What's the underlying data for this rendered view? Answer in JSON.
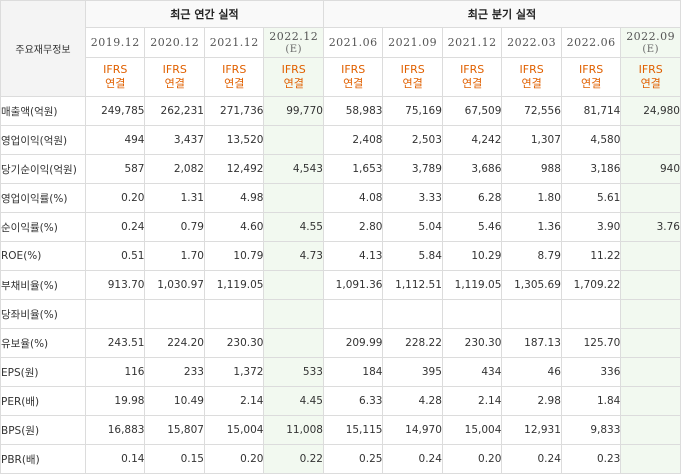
{
  "table": {
    "corner_label": "주요재무정보",
    "group_annual": "최근 연간 실적",
    "group_quarter": "최근 분기 실적",
    "periods": [
      {
        "label": "2019.12",
        "sub": "",
        "est": false
      },
      {
        "label": "2020.12",
        "sub": "",
        "est": false
      },
      {
        "label": "2021.12",
        "sub": "",
        "est": false
      },
      {
        "label": "2022.12",
        "sub": "(E)",
        "est": true
      },
      {
        "label": "2021.06",
        "sub": "",
        "est": false
      },
      {
        "label": "2021.09",
        "sub": "",
        "est": false
      },
      {
        "label": "2021.12",
        "sub": "",
        "est": false
      },
      {
        "label": "2022.03",
        "sub": "",
        "est": false
      },
      {
        "label": "2022.06",
        "sub": "",
        "est": false
      },
      {
        "label": "2022.09",
        "sub": "(E)",
        "est": true
      }
    ],
    "standard_line1": "IFRS",
    "standard_line2": "연결",
    "rows": [
      {
        "label": "매출액(억원)",
        "values": [
          "249,785",
          "262,231",
          "271,736",
          "99,770",
          "58,983",
          "75,169",
          "67,509",
          "72,556",
          "81,714",
          "24,980"
        ]
      },
      {
        "label": "영업이익(억원)",
        "values": [
          "494",
          "3,437",
          "13,520",
          "",
          "2,408",
          "2,503",
          "4,242",
          "1,307",
          "4,580",
          ""
        ]
      },
      {
        "label": "당기순이익(억원)",
        "values": [
          "587",
          "2,082",
          "12,492",
          "4,543",
          "1,653",
          "3,789",
          "3,686",
          "988",
          "3,186",
          "940"
        ]
      },
      {
        "label": "영업이익률(%)",
        "values": [
          "0.20",
          "1.31",
          "4.98",
          "",
          "4.08",
          "3.33",
          "6.28",
          "1.80",
          "5.61",
          ""
        ]
      },
      {
        "label": "순이익률(%)",
        "values": [
          "0.24",
          "0.79",
          "4.60",
          "4.55",
          "2.80",
          "5.04",
          "5.46",
          "1.36",
          "3.90",
          "3.76"
        ]
      },
      {
        "label": "ROE(%)",
        "values": [
          "0.51",
          "1.70",
          "10.79",
          "4.73",
          "4.13",
          "5.84",
          "10.29",
          "8.79",
          "11.22",
          ""
        ]
      },
      {
        "label": "부채비율(%)",
        "values": [
          "913.70",
          "1,030.97",
          "1,119.05",
          "",
          "1,091.36",
          "1,112.51",
          "1,119.05",
          "1,305.69",
          "1,709.22",
          ""
        ]
      },
      {
        "label": "당좌비율(%)",
        "values": [
          "",
          "",
          "",
          "",
          "",
          "",
          "",
          "",
          "",
          ""
        ]
      },
      {
        "label": "유보율(%)",
        "values": [
          "243.51",
          "224.20",
          "230.30",
          "",
          "209.99",
          "228.22",
          "230.30",
          "187.13",
          "125.70",
          ""
        ]
      },
      {
        "label": "EPS(원)",
        "values": [
          "116",
          "233",
          "1,372",
          "533",
          "184",
          "395",
          "434",
          "46",
          "336",
          ""
        ]
      },
      {
        "label": "PER(배)",
        "values": [
          "19.98",
          "10.49",
          "2.14",
          "4.45",
          "6.33",
          "4.28",
          "2.14",
          "2.98",
          "1.84",
          ""
        ]
      },
      {
        "label": "BPS(원)",
        "values": [
          "16,883",
          "15,807",
          "15,004",
          "11,008",
          "15,115",
          "14,970",
          "15,004",
          "12,931",
          "9,833",
          ""
        ]
      },
      {
        "label": "PBR(배)",
        "values": [
          "0.14",
          "0.15",
          "0.20",
          "0.22",
          "0.25",
          "0.24",
          "0.20",
          "0.24",
          "0.23",
          ""
        ]
      }
    ]
  }
}
